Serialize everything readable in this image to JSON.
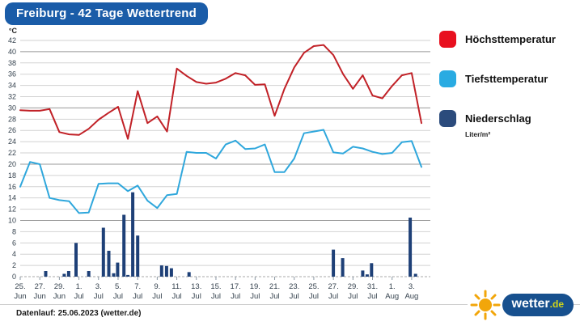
{
  "header": {
    "title": "Freiburg - 42 Tage Wettertrend"
  },
  "chart_data": {
    "type": "line+bar",
    "title": "Freiburg - 42 Tage Wettertrend",
    "y_unit": "°C",
    "ylim": [
      0,
      42
    ],
    "y_tick_step": 2,
    "grid": "horizontal every 2°C, darker line every 10°C, dashed baseline at 0",
    "x_tick_labels": [
      {
        "d": "25.",
        "m": "Jun"
      },
      {
        "d": "27.",
        "m": "Jun"
      },
      {
        "d": "29.",
        "m": "Jun"
      },
      {
        "d": "1.",
        "m": "Jul"
      },
      {
        "d": "3.",
        "m": "Jul"
      },
      {
        "d": "5.",
        "m": "Jul"
      },
      {
        "d": "7.",
        "m": "Jul"
      },
      {
        "d": "9.",
        "m": "Jul"
      },
      {
        "d": "11.",
        "m": "Jul"
      },
      {
        "d": "13.",
        "m": "Jul"
      },
      {
        "d": "15.",
        "m": "Jul"
      },
      {
        "d": "17.",
        "m": "Jul"
      },
      {
        "d": "19.",
        "m": "Jul"
      },
      {
        "d": "21.",
        "m": "Jul"
      },
      {
        "d": "23.",
        "m": "Jul"
      },
      {
        "d": "25.",
        "m": "Jul"
      },
      {
        "d": "27.",
        "m": "Jul"
      },
      {
        "d": "29.",
        "m": "Jul"
      },
      {
        "d": "31.",
        "m": "Jul"
      },
      {
        "d": "1.",
        "m": "Aug"
      },
      {
        "d": "3.",
        "m": "Aug"
      }
    ],
    "series": [
      {
        "name": "Höchsttemperatur",
        "type": "line",
        "color": "#c12127",
        "values": [
          29.6,
          29.5,
          29.5,
          29.8,
          25.7,
          25.3,
          25.2,
          26.3,
          27.9,
          29.1,
          30.2,
          24.5,
          33.0,
          27.3,
          28.5,
          25.8,
          37.0,
          35.7,
          34.6,
          34.3,
          34.5,
          35.2,
          36.2,
          35.8,
          34.1,
          34.2,
          28.6,
          33.4,
          37.2,
          39.8,
          41.0,
          41.2,
          39.4,
          36.0,
          33.4,
          35.8,
          32.2,
          31.7,
          33.9,
          35.8,
          36.2,
          27.3
        ]
      },
      {
        "name": "Tiefsttemperatur",
        "type": "line",
        "color": "#2fa7dc",
        "values": [
          16.0,
          20.4,
          20.0,
          14.0,
          13.6,
          13.4,
          11.3,
          11.4,
          16.5,
          16.6,
          16.6,
          15.2,
          16.2,
          13.5,
          12.2,
          14.5,
          14.7,
          22.2,
          22.0,
          22.0,
          21.0,
          23.5,
          24.2,
          22.7,
          22.8,
          23.5,
          18.6,
          18.6,
          21.0,
          25.5,
          25.8,
          26.1,
          22.1,
          21.9,
          23.1,
          22.8,
          22.2,
          21.8,
          22.0,
          23.9,
          24.1,
          19.5
        ]
      },
      {
        "name": "Niederschlag",
        "type": "bar",
        "unit": "Liter/m²",
        "color": "#1e4077",
        "points": [
          [
            2.6,
            1.0
          ],
          [
            4.5,
            0.5
          ],
          [
            4.95,
            1.0
          ],
          [
            5.7,
            6.0
          ],
          [
            7.0,
            1.0
          ],
          [
            8.5,
            8.7
          ],
          [
            9.05,
            4.6
          ],
          [
            9.55,
            0.6
          ],
          [
            9.95,
            2.5
          ],
          [
            10.6,
            11.0
          ],
          [
            11.0,
            0.3
          ],
          [
            11.5,
            15.0
          ],
          [
            12.0,
            7.3
          ],
          [
            14.45,
            2.0
          ],
          [
            14.95,
            1.9
          ],
          [
            15.45,
            1.5
          ],
          [
            17.25,
            0.8
          ],
          [
            32.0,
            4.8
          ],
          [
            32.95,
            3.3
          ],
          [
            35.0,
            1.1
          ],
          [
            35.45,
            0.4
          ],
          [
            35.9,
            2.4
          ],
          [
            39.85,
            10.5
          ],
          [
            40.4,
            0.5
          ]
        ]
      }
    ]
  },
  "legend": {
    "items": [
      {
        "label": "Höchsttemperatur",
        "color": "#e8101f"
      },
      {
        "label": "Tiefsttemperatur",
        "color": "#29abe2"
      },
      {
        "label": "Niederschlag",
        "color": "#2b4b7c"
      }
    ],
    "precip_unit": "Liter/m²"
  },
  "footer": {
    "datenlauf": "Datenlauf: 25.06.2023 (wetter.de)",
    "logo": {
      "word": "wetter",
      "tld": ".de"
    }
  }
}
